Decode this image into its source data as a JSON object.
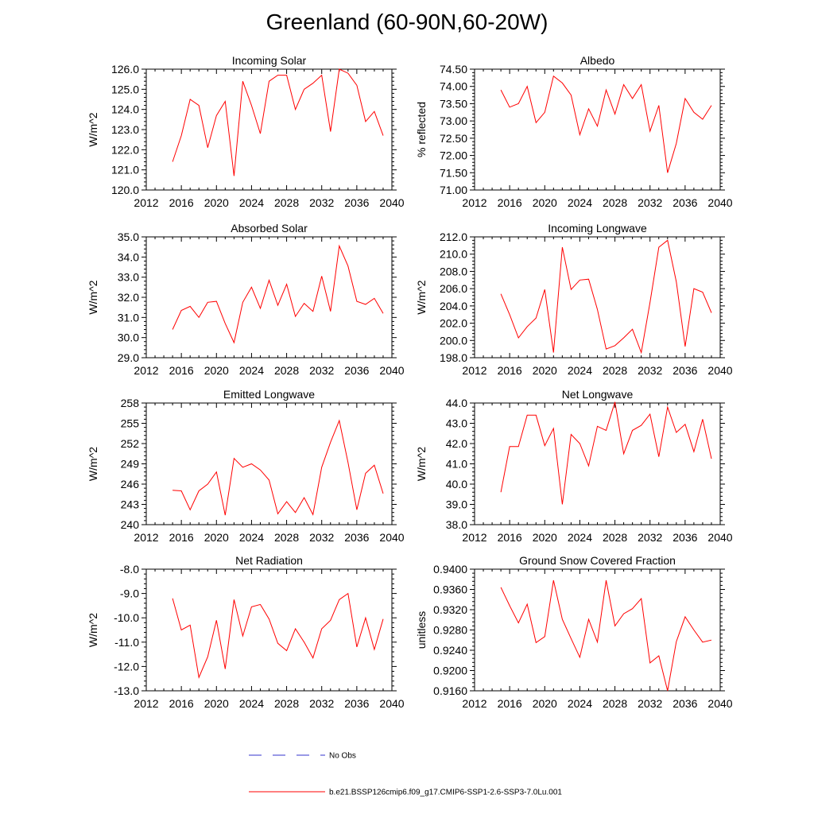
{
  "page": {
    "title": "Greenland (60-90N,60-20W)"
  },
  "legend": {
    "entries": [
      {
        "label": "No Obs",
        "color": "#3333cc",
        "style": "dashed"
      },
      {
        "label": "b.e21.BSSP126cmip6.f09_g17.CMIP6-SSP1-2.6-SSP3-7.0Lu.001",
        "color": "#ff0000",
        "style": "solid"
      }
    ]
  },
  "chart_data": [
    {
      "type": "line",
      "title": "Incoming Solar",
      "ylabel": "W/m^2",
      "xlabel": "",
      "xlim": [
        2012,
        2040
      ],
      "xticks": [
        2012,
        2016,
        2020,
        2024,
        2028,
        2032,
        2036,
        2040
      ],
      "ylim": [
        120.0,
        126.0
      ],
      "yticks": [
        "120.0",
        "121.0",
        "122.0",
        "123.0",
        "124.0",
        "125.0",
        "126.0"
      ],
      "grid": false,
      "color": "#ff0000",
      "x": [
        2015,
        2016,
        2017,
        2018,
        2019,
        2020,
        2021,
        2022,
        2023,
        2024,
        2025,
        2026,
        2027,
        2028,
        2029,
        2030,
        2031,
        2032,
        2033,
        2034,
        2035,
        2036,
        2037,
        2038,
        2039
      ],
      "values": [
        121.4,
        122.7,
        124.5,
        124.2,
        122.1,
        123.7,
        124.4,
        120.7,
        125.4,
        124.2,
        122.8,
        125.4,
        125.7,
        125.7,
        124.0,
        125.0,
        125.3,
        125.7,
        122.9,
        126.0,
        125.8,
        125.2,
        123.4,
        123.9,
        122.7
      ]
    },
    {
      "type": "line",
      "title": "Albedo",
      "ylabel": "% reflected",
      "xlabel": "",
      "xlim": [
        2012,
        2040
      ],
      "xticks": [
        2012,
        2016,
        2020,
        2024,
        2028,
        2032,
        2036,
        2040
      ],
      "ylim": [
        71.0,
        74.5
      ],
      "yticks": [
        "71.00",
        "71.50",
        "72.00",
        "72.50",
        "73.00",
        "73.50",
        "74.00",
        "74.50"
      ],
      "grid": false,
      "color": "#ff0000",
      "x": [
        2015,
        2016,
        2017,
        2018,
        2019,
        2020,
        2021,
        2022,
        2023,
        2024,
        2025,
        2026,
        2027,
        2028,
        2029,
        2030,
        2031,
        2032,
        2033,
        2034,
        2035,
        2036,
        2037,
        2038,
        2039
      ],
      "values": [
        73.9,
        73.4,
        73.5,
        74.0,
        72.95,
        73.25,
        74.3,
        74.1,
        73.75,
        72.6,
        73.35,
        72.85,
        73.9,
        73.2,
        74.05,
        73.65,
        74.05,
        72.7,
        73.45,
        71.5,
        72.35,
        73.65,
        73.25,
        73.05,
        73.45
      ]
    },
    {
      "type": "line",
      "title": "Absorbed Solar",
      "ylabel": "W/m^2",
      "xlabel": "",
      "xlim": [
        2012,
        2040
      ],
      "xticks": [
        2012,
        2016,
        2020,
        2024,
        2028,
        2032,
        2036,
        2040
      ],
      "ylim": [
        29.0,
        35.0
      ],
      "yticks": [
        "29.0",
        "30.0",
        "31.0",
        "32.0",
        "33.0",
        "34.0",
        "35.0"
      ],
      "grid": false,
      "color": "#ff0000",
      "x": [
        2015,
        2016,
        2017,
        2018,
        2019,
        2020,
        2021,
        2022,
        2023,
        2024,
        2025,
        2026,
        2027,
        2028,
        2029,
        2030,
        2031,
        2032,
        2033,
        2034,
        2035,
        2036,
        2037,
        2038,
        2039
      ],
      "values": [
        30.4,
        31.35,
        31.55,
        31.0,
        31.75,
        31.8,
        30.7,
        29.75,
        31.75,
        32.5,
        31.45,
        32.85,
        31.6,
        32.65,
        31.05,
        31.7,
        31.3,
        33.05,
        31.3,
        34.55,
        33.55,
        31.8,
        31.65,
        31.95,
        31.2
      ]
    },
    {
      "type": "line",
      "title": "Incoming Longwave",
      "ylabel": "W/m^2",
      "xlabel": "",
      "xlim": [
        2012,
        2040
      ],
      "xticks": [
        2012,
        2016,
        2020,
        2024,
        2028,
        2032,
        2036,
        2040
      ],
      "ylim": [
        198.0,
        212.0
      ],
      "yticks": [
        "198.0",
        "200.0",
        "202.0",
        "204.0",
        "206.0",
        "208.0",
        "210.0",
        "212.0"
      ],
      "grid": false,
      "color": "#ff0000",
      "x": [
        2015,
        2016,
        2017,
        2018,
        2019,
        2020,
        2021,
        2022,
        2023,
        2024,
        2025,
        2026,
        2027,
        2028,
        2029,
        2030,
        2031,
        2032,
        2033,
        2034,
        2035,
        2036,
        2037,
        2038,
        2039
      ],
      "values": [
        205.4,
        203.0,
        200.3,
        201.6,
        202.6,
        205.9,
        198.6,
        210.8,
        205.9,
        207.0,
        207.1,
        203.6,
        199.0,
        199.4,
        200.3,
        201.3,
        198.6,
        204.4,
        210.8,
        211.6,
        206.8,
        199.3,
        206.0,
        205.6,
        203.2
      ]
    },
    {
      "type": "line",
      "title": "Emitted Longwave",
      "ylabel": "W/m^2",
      "xlabel": "",
      "xlim": [
        2012,
        2040
      ],
      "xticks": [
        2012,
        2016,
        2020,
        2024,
        2028,
        2032,
        2036,
        2040
      ],
      "ylim": [
        240,
        258
      ],
      "yticks": [
        "240",
        "243",
        "246",
        "249",
        "252",
        "255",
        "258"
      ],
      "grid": false,
      "color": "#ff0000",
      "x": [
        2015,
        2016,
        2017,
        2018,
        2019,
        2020,
        2021,
        2022,
        2023,
        2024,
        2025,
        2026,
        2027,
        2028,
        2029,
        2030,
        2031,
        2032,
        2033,
        2034,
        2035,
        2036,
        2037,
        2038,
        2039
      ],
      "values": [
        245.1,
        245.0,
        242.2,
        245.0,
        246.0,
        247.8,
        241.4,
        249.8,
        248.5,
        249.0,
        248.1,
        246.6,
        241.6,
        243.4,
        241.8,
        244.0,
        241.5,
        248.5,
        252.2,
        255.4,
        249.2,
        242.2,
        247.6,
        248.8,
        244.6
      ]
    },
    {
      "type": "line",
      "title": "Net Longwave",
      "ylabel": "W/m^2",
      "xlabel": "",
      "xlim": [
        2012,
        2040
      ],
      "xticks": [
        2012,
        2016,
        2020,
        2024,
        2028,
        2032,
        2036,
        2040
      ],
      "ylim": [
        38.0,
        44.0
      ],
      "yticks": [
        "38.0",
        "39.0",
        "40.0",
        "41.0",
        "42.0",
        "43.0",
        "44.0"
      ],
      "grid": false,
      "color": "#ff0000",
      "x": [
        2015,
        2016,
        2017,
        2018,
        2019,
        2020,
        2021,
        2022,
        2023,
        2024,
        2025,
        2026,
        2027,
        2028,
        2029,
        2030,
        2031,
        2032,
        2033,
        2034,
        2035,
        2036,
        2037,
        2038,
        2039
      ],
      "values": [
        39.6,
        41.85,
        41.85,
        43.4,
        43.4,
        41.9,
        42.75,
        39.0,
        42.45,
        42.0,
        40.9,
        42.85,
        42.65,
        44.05,
        41.5,
        42.65,
        42.9,
        43.45,
        41.35,
        43.8,
        42.55,
        42.95,
        41.6,
        43.2,
        41.25
      ]
    },
    {
      "type": "line",
      "title": "Net Radiation",
      "ylabel": "W/m^2",
      "xlabel": "",
      "xlim": [
        2012,
        2040
      ],
      "xticks": [
        2012,
        2016,
        2020,
        2024,
        2028,
        2032,
        2036,
        2040
      ],
      "ylim": [
        -13.0,
        -8.0
      ],
      "yticks": [
        "-13.0",
        "-12.0",
        "-11.0",
        "-10.0",
        "-9.0",
        "-8.0"
      ],
      "grid": false,
      "color": "#ff0000",
      "x": [
        2015,
        2016,
        2017,
        2018,
        2019,
        2020,
        2021,
        2022,
        2023,
        2024,
        2025,
        2026,
        2027,
        2028,
        2029,
        2030,
        2031,
        2032,
        2033,
        2034,
        2035,
        2036,
        2037,
        2038,
        2039
      ],
      "values": [
        -9.2,
        -10.5,
        -10.3,
        -12.45,
        -11.6,
        -10.1,
        -12.1,
        -9.25,
        -10.75,
        -9.55,
        -9.45,
        -10.05,
        -11.05,
        -11.35,
        -10.45,
        -11.0,
        -11.65,
        -10.45,
        -10.1,
        -9.25,
        -9.0,
        -11.2,
        -10.0,
        -11.3,
        -10.05
      ]
    },
    {
      "type": "line",
      "title": "Ground Snow Covered Fraction",
      "ylabel": "unitless",
      "xlabel": "",
      "xlim": [
        2012,
        2040
      ],
      "xticks": [
        2012,
        2016,
        2020,
        2024,
        2028,
        2032,
        2036,
        2040
      ],
      "ylim": [
        0.916,
        0.94
      ],
      "yticks": [
        "0.9160",
        "0.9200",
        "0.9240",
        "0.9280",
        "0.9320",
        "0.9360",
        "0.9400"
      ],
      "grid": false,
      "color": "#ff0000",
      "x": [
        2015,
        2016,
        2017,
        2018,
        2019,
        2020,
        2021,
        2022,
        2023,
        2024,
        2025,
        2026,
        2027,
        2028,
        2029,
        2030,
        2031,
        2032,
        2033,
        2034,
        2035,
        2036,
        2037,
        2038,
        2039
      ],
      "values": [
        0.9364,
        0.9328,
        0.9294,
        0.9331,
        0.9255,
        0.9267,
        0.9378,
        0.9301,
        0.9263,
        0.9226,
        0.9301,
        0.9256,
        0.9378,
        0.9288,
        0.9312,
        0.9322,
        0.9342,
        0.9215,
        0.9229,
        0.916,
        0.9257,
        0.9306,
        0.928,
        0.9256,
        0.926
      ]
    }
  ]
}
